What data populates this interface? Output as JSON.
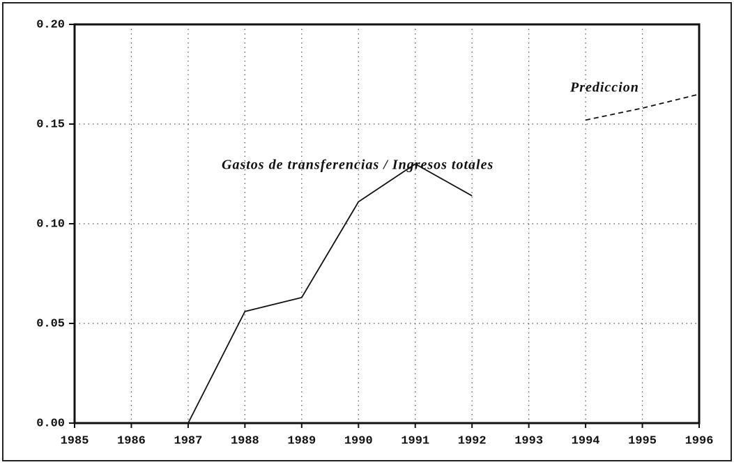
{
  "chart_data": {
    "type": "line",
    "x": [
      1985,
      1986,
      1987,
      1988,
      1989,
      1990,
      1991,
      1992,
      1993,
      1994,
      1995,
      1996
    ],
    "series": [
      {
        "name": "Gastos de transferencias / Ingresos totales",
        "color": "#111111",
        "dash": false,
        "values": [
          0,
          0,
          0,
          0.056,
          0.063,
          0.111,
          0.13,
          0.114,
          null,
          null,
          null,
          null
        ]
      },
      {
        "name": "Prediccion",
        "color": "#111111",
        "dash": true,
        "values": [
          null,
          null,
          null,
          null,
          null,
          null,
          null,
          null,
          null,
          0.152,
          0.158,
          0.165
        ]
      }
    ],
    "xlim": [
      1985,
      1996
    ],
    "xticks": [
      1985,
      1986,
      1987,
      1988,
      1989,
      1990,
      1991,
      1992,
      1993,
      1994,
      1995,
      1996
    ],
    "ylim": [
      0,
      0.2
    ],
    "yticks": [
      {
        "value": 0,
        "label": "0.00"
      },
      {
        "value": 0.05,
        "label": "0.05"
      },
      {
        "value": 0.1,
        "label": "0.10"
      },
      {
        "value": 0.15,
        "label": "0.15"
      },
      {
        "value": 0.2,
        "label": "0.20"
      }
    ],
    "grid": true
  }
}
